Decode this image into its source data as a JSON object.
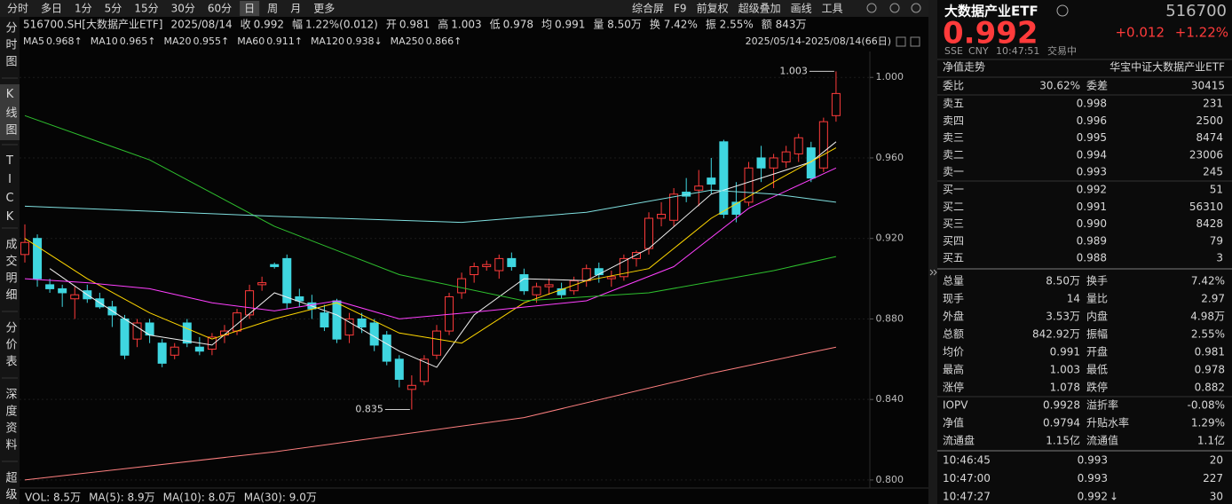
{
  "toolbar": {
    "periods": [
      "分时",
      "多日",
      "1分",
      "5分",
      "15分",
      "30分",
      "60分",
      "日",
      "周",
      "月",
      "更多"
    ],
    "active": "日",
    "tools": [
      "综合屏",
      "F9",
      "前复权",
      "超级叠加",
      "画线",
      "工具"
    ]
  },
  "sidebar": {
    "tabs": [
      "分时图",
      "K线图",
      "TICK",
      "成交明细",
      "分价表",
      "深度资料",
      "超级复"
    ],
    "active": "K线图"
  },
  "quote_line": [
    {
      "text": "516700.SH[大数据产业ETF]"
    },
    {
      "text": "2025/08/14"
    },
    {
      "text": "收"
    },
    {
      "text": "0.992",
      "color": "#ff4545"
    },
    {
      "text": "幅"
    },
    {
      "text": "1.22%(0.012)",
      "color": "#ff4545"
    },
    {
      "text": "开"
    },
    {
      "text": "0.981",
      "color": "#ff4545"
    },
    {
      "text": "高"
    },
    {
      "text": "1.003",
      "color": "#ff4545"
    },
    {
      "text": "低"
    },
    {
      "text": "0.978",
      "color": "#2ed83e"
    },
    {
      "text": "均"
    },
    {
      "text": "0.991",
      "color": "#ff4545"
    },
    {
      "text": "量 8.50万"
    },
    {
      "text": "换 7.42%"
    },
    {
      "text": "振 2.55%"
    },
    {
      "text": "额 843万"
    }
  ],
  "range_label": "2025/05/14-2025/08/14(66日)",
  "chart_data": {
    "type": "candlestick",
    "up_color": "#ff3b3b",
    "down_color": "#3fd6e0",
    "grid": true,
    "ylim": [
      0.796,
      1.012
    ],
    "yticks": [
      {
        "value": 0.8,
        "label": "0.800"
      },
      {
        "value": 0.84,
        "label": "0.840"
      },
      {
        "value": 0.88,
        "label": "0.880"
      },
      {
        "value": 0.92,
        "label": "0.920"
      },
      {
        "value": 0.96,
        "label": "0.960"
      },
      {
        "value": 1.0,
        "label": "1.000"
      }
    ],
    "open": [
      0.912,
      0.92,
      0.897,
      0.895,
      0.89,
      0.894,
      0.89,
      0.886,
      0.88,
      0.87,
      0.878,
      0.868,
      0.862,
      0.878,
      0.866,
      0.865,
      0.872,
      0.874,
      0.882,
      0.897,
      0.907,
      0.91,
      0.891,
      0.888,
      0.883,
      0.889,
      0.872,
      0.88,
      0.878,
      0.872,
      0.86,
      0.845,
      0.849,
      0.862,
      0.874,
      0.893,
      0.902,
      0.906,
      0.904,
      0.91,
      0.902,
      0.892,
      0.896,
      0.895,
      0.894,
      0.899,
      0.905,
      0.9,
      0.901,
      0.91,
      0.915,
      0.93,
      0.929,
      0.943,
      0.944,
      0.95,
      0.968,
      0.938,
      0.938,
      0.96,
      0.955,
      0.958,
      0.962,
      0.965,
      0.955,
      0.981
    ],
    "high": [
      0.927,
      0.922,
      0.9,
      0.897,
      0.896,
      0.897,
      0.893,
      0.889,
      0.882,
      0.88,
      0.88,
      0.87,
      0.868,
      0.88,
      0.871,
      0.873,
      0.877,
      0.885,
      0.897,
      0.901,
      0.908,
      0.912,
      0.895,
      0.892,
      0.887,
      0.89,
      0.883,
      0.883,
      0.88,
      0.874,
      0.862,
      0.852,
      0.862,
      0.877,
      0.893,
      0.903,
      0.908,
      0.909,
      0.912,
      0.913,
      0.905,
      0.898,
      0.9,
      0.898,
      0.901,
      0.907,
      0.908,
      0.904,
      0.912,
      0.914,
      0.933,
      0.938,
      0.945,
      0.95,
      0.954,
      0.96,
      0.969,
      0.948,
      0.958,
      0.966,
      0.962,
      0.966,
      0.972,
      0.968,
      0.98,
      1.003
    ],
    "low": [
      0.908,
      0.896,
      0.893,
      0.886,
      0.88,
      0.888,
      0.885,
      0.876,
      0.86,
      0.866,
      0.868,
      0.856,
      0.86,
      0.866,
      0.862,
      0.862,
      0.868,
      0.872,
      0.88,
      0.894,
      0.905,
      0.885,
      0.886,
      0.88,
      0.874,
      0.868,
      0.868,
      0.873,
      0.864,
      0.857,
      0.846,
      0.835,
      0.847,
      0.86,
      0.872,
      0.89,
      0.898,
      0.904,
      0.9,
      0.904,
      0.892,
      0.888,
      0.892,
      0.89,
      0.892,
      0.896,
      0.898,
      0.896,
      0.899,
      0.906,
      0.912,
      0.926,
      0.926,
      0.938,
      0.936,
      0.942,
      0.93,
      0.928,
      0.936,
      0.948,
      0.945,
      0.955,
      0.958,
      0.948,
      0.953,
      0.978
    ],
    "close": [
      0.918,
      0.9,
      0.895,
      0.893,
      0.892,
      0.89,
      0.886,
      0.882,
      0.862,
      0.878,
      0.872,
      0.858,
      0.866,
      0.868,
      0.864,
      0.871,
      0.874,
      0.883,
      0.894,
      0.898,
      0.906,
      0.888,
      0.889,
      0.885,
      0.876,
      0.87,
      0.88,
      0.876,
      0.867,
      0.859,
      0.85,
      0.847,
      0.86,
      0.874,
      0.891,
      0.9,
      0.906,
      0.907,
      0.91,
      0.906,
      0.894,
      0.896,
      0.897,
      0.892,
      0.899,
      0.905,
      0.902,
      0.901,
      0.91,
      0.913,
      0.93,
      0.932,
      0.942,
      0.941,
      0.946,
      0.947,
      0.932,
      0.932,
      0.955,
      0.955,
      0.96,
      0.963,
      0.97,
      0.95,
      0.978,
      0.992
    ],
    "max_label": 1.003,
    "min_label": 0.835,
    "series": [
      {
        "name": "MA5",
        "label": "0.968↑",
        "color": "#f0f0f0",
        "label_color": "#ffb040",
        "x": [
          2,
          5,
          10,
          15,
          20,
          25,
          30,
          33,
          36,
          40,
          45,
          50,
          55,
          60,
          63,
          65
        ],
        "values": [
          0.905,
          0.892,
          0.872,
          0.867,
          0.893,
          0.882,
          0.864,
          0.856,
          0.882,
          0.9,
          0.899,
          0.915,
          0.942,
          0.952,
          0.958,
          0.968
        ]
      },
      {
        "name": "MA10",
        "label": "0.965↑",
        "color": "#ffd700",
        "x": [
          0,
          5,
          10,
          15,
          20,
          25,
          30,
          35,
          40,
          45,
          50,
          55,
          60,
          65
        ],
        "values": [
          0.92,
          0.9,
          0.883,
          0.87,
          0.88,
          0.888,
          0.873,
          0.868,
          0.888,
          0.899,
          0.905,
          0.93,
          0.948,
          0.965
        ]
      },
      {
        "name": "MA20",
        "label": "0.955↑",
        "color": "#ff40ff",
        "x": [
          0,
          5,
          10,
          15,
          20,
          25,
          30,
          37,
          45,
          52,
          58,
          65
        ],
        "values": [
          0.9,
          0.898,
          0.895,
          0.888,
          0.884,
          0.889,
          0.88,
          0.884,
          0.889,
          0.906,
          0.935,
          0.955
        ]
      },
      {
        "name": "MA60",
        "label": "0.911↑",
        "color": "#2ec02e",
        "x": [
          0,
          10,
          20,
          30,
          40,
          50,
          60,
          65
        ],
        "values": [
          0.981,
          0.959,
          0.926,
          0.902,
          0.889,
          0.893,
          0.904,
          0.911
        ]
      },
      {
        "name": "MA120",
        "label": "0.938↓",
        "color": "#80e0e0",
        "x": [
          0,
          20,
          35,
          45,
          55,
          60,
          65
        ],
        "values": [
          0.936,
          0.931,
          0.928,
          0.933,
          0.944,
          0.942,
          0.938
        ]
      },
      {
        "name": "MA250",
        "label": "0.866↑",
        "color": "#ff8080",
        "x": [
          0,
          20,
          40,
          55,
          65
        ],
        "values": [
          0.8,
          0.814,
          0.831,
          0.853,
          0.866
        ]
      }
    ]
  },
  "volume_line": [
    {
      "text": "VOL: 8.5万",
      "color": "#dddddd"
    },
    {
      "text": "MA(5): 8.9万",
      "color": "#dddddd"
    },
    {
      "text": "MA(10): 8.0万",
      "color": "#ffd700"
    },
    {
      "text": "MA(30): 9.0万",
      "color": "#ff40ff"
    }
  ],
  "panel": {
    "name": "大数据产业ETF",
    "code": "516700",
    "price": "0.992",
    "change": "+0.012",
    "change_pct": "+1.22%",
    "market": "SSE",
    "currency": "CNY",
    "time": "10:47:51",
    "status": "交易中",
    "nav_trend": "净值走势",
    "fund_name": "华宝中证大数据产业ETF",
    "order_ratio": [
      {
        "label": "委比",
        "value": "30.62%",
        "color": "#ff4545"
      },
      {
        "label": "委差",
        "value": "30415",
        "color": "#ff4545"
      }
    ],
    "asks": [
      {
        "label": "卖五",
        "price": "0.998",
        "volume": "231"
      },
      {
        "label": "卖四",
        "price": "0.996",
        "volume": "2500"
      },
      {
        "label": "卖三",
        "price": "0.995",
        "volume": "8474"
      },
      {
        "label": "卖二",
        "price": "0.994",
        "volume": "23006"
      },
      {
        "label": "卖一",
        "price": "0.993",
        "volume": "245"
      }
    ],
    "bids": [
      {
        "label": "买一",
        "price": "0.992",
        "volume": "51"
      },
      {
        "label": "买二",
        "price": "0.991",
        "volume": "56310"
      },
      {
        "label": "买三",
        "price": "0.990",
        "volume": "8428"
      },
      {
        "label": "买四",
        "price": "0.989",
        "volume": "79"
      },
      {
        "label": "买五",
        "price": "0.988",
        "volume": "3"
      }
    ],
    "price_color": "#ff4545",
    "stats": [
      [
        {
          "label": "总量",
          "value": "8.50万"
        },
        {
          "label": "换手",
          "value": "7.42%"
        }
      ],
      [
        {
          "label": "现手",
          "value": "14"
        },
        {
          "label": "量比",
          "value": "2.97"
        }
      ],
      [
        {
          "label": "外盘",
          "value": "3.53万",
          "color": "#ff4545"
        },
        {
          "label": "内盘",
          "value": "4.98万",
          "color": "#2ed83e"
        }
      ],
      [
        {
          "label": "总额",
          "value": "842.92万"
        },
        {
          "label": "振幅",
          "value": "2.55%"
        }
      ],
      [
        {
          "label": "均价",
          "value": "0.991",
          "color": "#ff4545"
        },
        {
          "label": "开盘",
          "value": "0.981",
          "color": "#ff4545"
        }
      ],
      [
        {
          "label": "最高",
          "value": "1.003",
          "color": "#ff4545"
        },
        {
          "label": "最低",
          "value": "0.978",
          "color": "#2ed83e"
        }
      ],
      [
        {
          "label": "涨停",
          "value": "1.078",
          "color": "#ff4545"
        },
        {
          "label": "跌停",
          "value": "0.882",
          "color": "#2ed83e"
        }
      ]
    ],
    "fund_stats": [
      [
        {
          "label": "IOPV",
          "value": "0.9928"
        },
        {
          "label": "溢折率",
          "value": "-0.08%",
          "color": "#2ed83e"
        }
      ],
      [
        {
          "label": "净值",
          "value": "0.9794",
          "color": "#ff4545"
        },
        {
          "label": "升贴水率",
          "value": "1.29%",
          "color": "#ff4545"
        }
      ],
      [
        {
          "label": "流通盘",
          "value": "1.15亿"
        },
        {
          "label": "流通值",
          "value": "1.1亿"
        }
      ]
    ],
    "trades": [
      {
        "time": "10:46:45",
        "price": "0.993",
        "volume": "20"
      },
      {
        "time": "10:47:00",
        "price": "0.993",
        "volume": "227"
      },
      {
        "time": "10:47:27",
        "price": "0.992",
        "direction": "↓",
        "volume": "30"
      }
    ],
    "volume_color": "#2ed83e"
  }
}
